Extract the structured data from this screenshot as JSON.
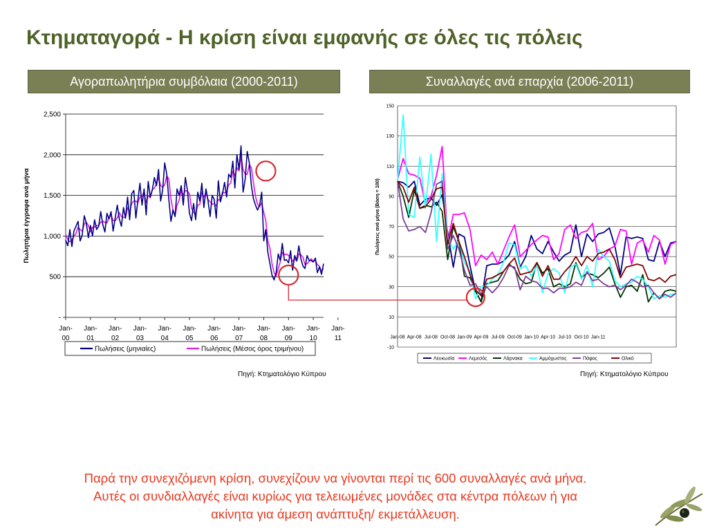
{
  "page": {
    "title": "Κτηματαγορά - Η κρίση είναι εμφανής σε όλες τις πόλεις",
    "left_header": "Αγοραπωλητήρια συμβόλαια (2000-2011)",
    "right_header": "Συναλλαγές ανά επαρχία (2006-2011)",
    "left_source": "Πηγή: Κτηματολόγιο Κύπρου",
    "right_source": "Πηγή: Κτηματολόγιο Κύπρου",
    "bottom_lines": [
      "Παρά την συνεχιζόμενη κρίση, συνεχίζουν να γίνονται περί τις 600 συναλλαγές ανά μήνα.",
      "Αυτές οι συνδιαλλαγές είναι κυρίως για τελειωμένες μονάδες στα κέντρα πόλεων ή για",
      "ακίνητα για άμεση ανάπτυξη/ εκμετάλλευση."
    ],
    "colors": {
      "title": "#4f6228",
      "header_bg": "#7a7f55",
      "bottom_text": "#e8381f",
      "highlight": "#d7282f"
    }
  },
  "chart_data": [
    {
      "type": "line",
      "ylabel": "Πωλητήρια έγγραφα ανά μήνα",
      "xlabel": "",
      "ylim": [
        0,
        2500
      ],
      "y_ticks": [
        {
          "value": 0,
          "label": "-"
        },
        {
          "value": 500,
          "label": "500"
        },
        {
          "value": 1000,
          "label": "1,000"
        },
        {
          "value": 1500,
          "label": "1,500"
        },
        {
          "value": 2000,
          "label": "2,000"
        },
        {
          "value": 2500,
          "label": "2,500"
        }
      ],
      "x_ticks": [
        {
          "line1": "Jan-",
          "line2": "00"
        },
        {
          "line1": "Jan-",
          "line2": "01"
        },
        {
          "line1": "Jan-",
          "line2": "02"
        },
        {
          "line1": "Jan-",
          "line2": "03"
        },
        {
          "line1": "Jan-",
          "line2": "04"
        },
        {
          "line1": "Jan-",
          "line2": "05"
        },
        {
          "line1": "Jan-",
          "line2": "06"
        },
        {
          "line1": "Jan-",
          "line2": "07"
        },
        {
          "line1": "Jan-",
          "line2": "08"
        },
        {
          "line1": "Jan-",
          "line2": "09"
        },
        {
          "line1": "Jan-",
          "line2": "10"
        },
        {
          "line1": "Jan-",
          "line2": "11"
        }
      ],
      "x_start": "2000-01",
      "grid": true,
      "legend_position": "bottom",
      "series": [
        {
          "name": "Πωλήσεις (μηνιαίες)",
          "color": "#000080",
          "values": [
            950,
            880,
            1080,
            870,
            1060,
            1120,
            1180,
            940,
            1010,
            1250,
            1160,
            980,
            1130,
            1000,
            1200,
            1080,
            1120,
            1300,
            1140,
            1050,
            1280,
            1210,
            1300,
            1060,
            1220,
            1380,
            1210,
            1120,
            1350,
            1220,
            1480,
            1200,
            1520,
            1560,
            1220,
            1440,
            1650,
            1380,
            1580,
            1260,
            1670,
            1480,
            1570,
            1720,
            1620,
            1820,
            1430,
            1560,
            1900,
            1760,
            1450,
            1180,
            1320,
            1240,
            1580,
            1500,
            1620,
            1380,
            1720,
            1560,
            1280,
            1190,
            1400,
            1200,
            1540,
            1430,
            1650,
            1350,
            1580,
            1430,
            1240,
            1500,
            1450,
            1220,
            1680,
            1420,
            1520,
            1660,
            1480,
            1760,
            1720,
            1920,
            1590,
            2000,
            1820,
            2110,
            1540,
            1700,
            2040,
            1900,
            1620,
            1460,
            1380,
            1320,
            1380,
            1540,
            940,
            1080,
            800,
            660,
            520,
            460,
            550,
            780,
            700,
            910,
            700,
            710,
            670,
            820,
            580,
            760,
            700,
            880,
            720,
            630,
            600,
            760,
            700,
            700,
            680,
            730,
            550,
            620,
            530,
            660
          ]
        },
        {
          "name": "Πωλήσεις (Μέσος όρος τριμήνου)",
          "color": "#e020e0",
          "values": [
            1020,
            960,
            930,
            950,
            1000,
            1030,
            1110,
            1080,
            1060,
            1150,
            1170,
            1130,
            1050,
            1110,
            1110,
            1130,
            1130,
            1170,
            1180,
            1170,
            1160,
            1230,
            1260,
            1190,
            1190,
            1220,
            1290,
            1240,
            1230,
            1230,
            1350,
            1300,
            1400,
            1430,
            1430,
            1410,
            1480,
            1490,
            1540,
            1410,
            1500,
            1470,
            1570,
            1590,
            1640,
            1720,
            1620,
            1600,
            1630,
            1740,
            1700,
            1460,
            1320,
            1250,
            1380,
            1440,
            1570,
            1500,
            1560,
            1550,
            1520,
            1340,
            1290,
            1260,
            1380,
            1390,
            1540,
            1480,
            1530,
            1450,
            1420,
            1390,
            1400,
            1370,
            1450,
            1440,
            1540,
            1530,
            1550,
            1630,
            1650,
            1800,
            1740,
            1840,
            1800,
            1980,
            1820,
            1760,
            1760,
            1880,
            1840,
            1660,
            1490,
            1390,
            1360,
            1410,
            1290,
            1190,
            940,
            850,
            660,
            550,
            510,
            600,
            680,
            800,
            770,
            780,
            760,
            730,
            690,
            720,
            690,
            780,
            770,
            740,
            650,
            660,
            690,
            720,
            690,
            700,
            650,
            630,
            570,
            600
          ]
        }
      ],
      "annotations": [
        {
          "type": "circle",
          "x_index": 97,
          "value": 1800
        },
        {
          "type": "circle",
          "x_index": 108,
          "value": 520
        }
      ]
    },
    {
      "type": "line",
      "ylabel": "Πωλήσεις ανά μήνα (Βάση = 100)",
      "xlabel": "",
      "ylim": [
        -10,
        150
      ],
      "y_ticks": [
        -10,
        10,
        30,
        50,
        70,
        90,
        110,
        130,
        150
      ],
      "x_ticks": [
        "Jan-08",
        "Apr-08",
        "Jul-08",
        "Oct-08",
        "Jan-09",
        "Apr-09",
        "Jul-09",
        "Oct-09",
        "Jan-10",
        "Apr-10",
        "Jul-10",
        "Oct-10",
        "Jan-11"
      ],
      "x_start": "2008-01",
      "grid": true,
      "legend_position": "bottom",
      "series": [
        {
          "name": "Λευκωσία",
          "color": "#000080",
          "values": [
            100,
            99,
            96,
            100,
            84,
            88,
            89,
            84,
            91,
            66,
            43,
            65,
            63,
            44,
            27,
            20,
            44,
            45,
            45,
            47,
            51,
            60,
            43,
            50,
            64,
            55,
            52,
            60,
            53,
            47,
            51,
            53,
            71,
            50,
            65,
            60,
            65,
            66,
            69,
            57,
            38,
            63,
            62,
            63,
            62,
            48,
            47,
            60,
            50,
            59,
            60
          ]
        },
        {
          "name": "Λεμεσός",
          "color": "#ff00ff",
          "values": [
            101,
            115,
            105,
            104,
            102,
            85,
            90,
            104,
            123,
            60,
            78,
            78,
            79,
            68,
            44,
            51,
            48,
            53,
            45,
            54,
            63,
            71,
            50,
            54,
            58,
            61,
            64,
            63,
            48,
            52,
            68,
            71,
            62,
            66,
            67,
            72,
            48,
            50,
            55,
            57,
            68,
            67,
            45,
            59,
            61,
            53,
            64,
            61,
            45,
            58,
            60
          ]
        },
        {
          "name": "Λάρνακα",
          "color": "#003300",
          "values": [
            100,
            90,
            76,
            94,
            82,
            84,
            83,
            86,
            80,
            48,
            70,
            60,
            37,
            36,
            27,
            20,
            32,
            33,
            34,
            40,
            45,
            42,
            35,
            32,
            33,
            46,
            39,
            42,
            30,
            32,
            30,
            32,
            46,
            36,
            39,
            38,
            36,
            39,
            43,
            32,
            23,
            30,
            31,
            27,
            38,
            20,
            26,
            22,
            27,
            28,
            27
          ]
        },
        {
          "name": "Αμμόχωστος",
          "color": "#33ffff",
          "values": [
            100,
            144,
            78,
            76,
            116,
            82,
            118,
            60,
            105,
            62,
            55,
            61,
            46,
            40,
            22,
            30,
            31,
            35,
            38,
            46,
            59,
            58,
            42,
            44,
            37,
            44,
            26,
            39,
            42,
            39,
            26,
            43,
            45,
            35,
            44,
            30,
            55,
            50,
            47,
            34,
            30,
            32,
            33,
            37,
            35,
            30,
            22,
            24,
            23,
            25,
            25
          ]
        },
        {
          "name": "Πάφος",
          "color": "#7d3c98",
          "values": [
            100,
            75,
            67,
            68,
            70,
            66,
            79,
            98,
            100,
            55,
            64,
            55,
            41,
            31,
            32,
            25,
            30,
            26,
            30,
            36,
            44,
            43,
            28,
            37,
            34,
            33,
            29,
            29,
            26,
            29,
            29,
            30,
            33,
            31,
            40,
            34,
            35,
            32,
            30,
            31,
            28,
            31,
            35,
            33,
            30,
            31,
            26,
            22,
            25,
            23,
            26
          ]
        },
        {
          "name": "Ολικό",
          "color": "#800000",
          "values": [
            100,
            96,
            86,
            96,
            82,
            83,
            88,
            95,
            96,
            58,
            72,
            60,
            50,
            38,
            28,
            24,
            35,
            36,
            38,
            40,
            45,
            49,
            38,
            39,
            40,
            46,
            37,
            44,
            35,
            35,
            40,
            44,
            50,
            44,
            50,
            47,
            52,
            53,
            55,
            48,
            36,
            43,
            44,
            45,
            44,
            35,
            34,
            36,
            33,
            37,
            38
          ]
        }
      ],
      "annotations": [
        {
          "type": "circle",
          "x_index": 14,
          "value": 23
        }
      ]
    }
  ]
}
